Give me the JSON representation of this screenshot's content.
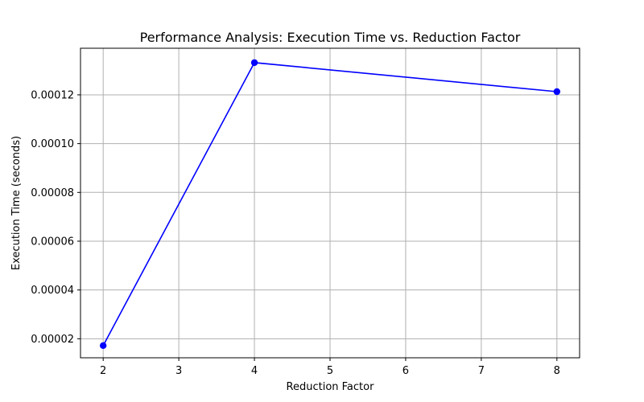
{
  "chart_data": {
    "type": "line",
    "title": "Performance Analysis: Execution Time vs. Reduction Factor",
    "xlabel": "Reduction Factor",
    "ylabel": "Execution Time (seconds)",
    "xlim": [
      1.7,
      8.3
    ],
    "ylim": [
      1.22e-05,
      0.0001391
    ],
    "x_ticks": [
      2,
      3,
      4,
      5,
      6,
      7,
      8
    ],
    "x_tick_labels": [
      "2",
      "3",
      "4",
      "5",
      "6",
      "7",
      "8"
    ],
    "y_ticks": [
      2e-05,
      4e-05,
      6e-05,
      8e-05,
      0.0001,
      0.00012
    ],
    "y_tick_labels": [
      "0.00002",
      "0.00004",
      "0.00006",
      "0.00008",
      "0.00010",
      "0.00012"
    ],
    "grid": true,
    "series": [
      {
        "color": "#0000ff",
        "marker": "circle",
        "x": [
          2,
          4,
          8
        ],
        "y": [
          1.72e-05,
          0.0001332,
          0.0001213
        ]
      }
    ]
  }
}
